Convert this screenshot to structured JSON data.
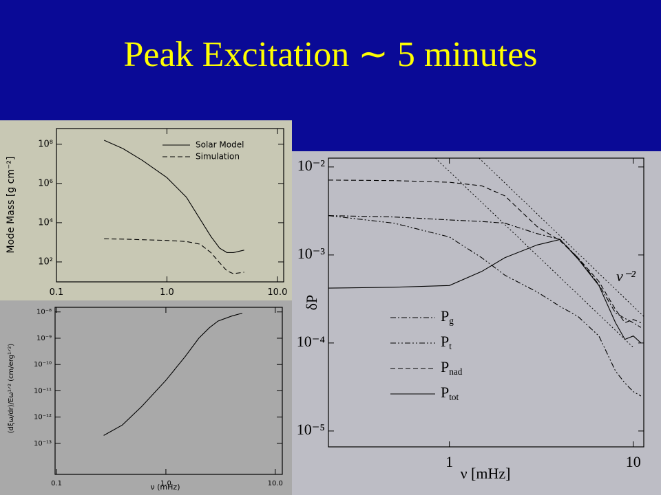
{
  "title": "Peak Excitation ∼ 5 minutes",
  "chart_data": [
    {
      "type": "line",
      "log_x": true,
      "log_y": true,
      "y_label": "Mode Mass [g cm⁻²]",
      "xlim": [
        0.1,
        11.4
      ],
      "xticks": [
        0.1,
        {
          "value": 1,
          "label": "1.0"
        },
        {
          "value": 10,
          "label": "10.0"
        }
      ],
      "ylim": [
        9.6,
        630000000
      ],
      "yticks": [
        {
          "value": 100,
          "label": "10²"
        },
        {
          "value": 10000,
          "label": "10⁴"
        },
        {
          "value": 1000000,
          "label": "10⁶"
        },
        {
          "value": 100000000,
          "label": "10⁸"
        }
      ],
      "legend": "top-right",
      "x": [
        0.27,
        0.4,
        0.6,
        1.0,
        1.5,
        2.0,
        2.5,
        3.0,
        3.5,
        4.0,
        5.0
      ],
      "series": [
        {
          "name": "Solar Model",
          "color": "#000000",
          "dash": "solid",
          "values": [
            160000000,
            60000000,
            15000000,
            2000000,
            200000,
            15000,
            2000,
            500,
            300,
            300,
            400
          ]
        },
        {
          "name": "Simulation",
          "color": "#000000",
          "dash": "dashed",
          "values": [
            1500,
            1450,
            1350,
            1250,
            1100,
            800,
            300,
            90,
            35,
            25,
            30
          ]
        }
      ]
    },
    {
      "type": "line",
      "log_x": true,
      "log_y": true,
      "x_label": "ν (mHz)",
      "y_label": "(dξω/dr)/Eω¹ᐟ² (cm/erg¹ᐟ²)",
      "xlim": [
        0.097,
        11.6
      ],
      "xticks": [
        0.1,
        {
          "value": 1,
          "label": "1.0"
        },
        {
          "value": 10,
          "label": "10.0"
        }
      ],
      "ylim": [
        6.6e-15,
        1.5e-08
      ],
      "yticks": [
        {
          "value": 1e-13,
          "label": "10⁻¹³"
        },
        {
          "value": 1e-12,
          "label": "10⁻¹²"
        },
        {
          "value": 1e-11,
          "label": "10⁻¹¹"
        },
        {
          "value": 1e-10,
          "label": "10⁻¹⁰"
        },
        {
          "value": 1e-09,
          "label": "10⁻⁹"
        },
        {
          "value": 1e-08,
          "label": "10⁻⁸"
        }
      ],
      "x": [
        0.27,
        0.4,
        0.6,
        1.0,
        1.5,
        2.0,
        2.5,
        3.0,
        4.0,
        5.0
      ],
      "series": [
        {
          "color": "#000000",
          "dash": "solid",
          "values": [
            2e-13,
            5e-13,
            2.5e-12,
            2.5e-11,
            2e-10,
            1e-09,
            2.5e-09,
            4.5e-09,
            7e-09,
            9e-09
          ]
        }
      ]
    },
    {
      "type": "line",
      "log_x": true,
      "log_y": true,
      "x_label": "ν [mHz]",
      "y_label": "δP",
      "annotation": "ν⁻²",
      "xlim": [
        0.22,
        11.4
      ],
      "xticks": [
        1,
        10
      ],
      "ylim": [
        6.6e-06,
        0.0126
      ],
      "yticks": [
        {
          "value": 1e-05,
          "label": "10⁻⁵"
        },
        {
          "value": 0.0001,
          "label": "10⁻⁴"
        },
        {
          "value": 0.001,
          "label": "10⁻³"
        },
        {
          "value": 0.01,
          "label": "10⁻²"
        }
      ],
      "legend": "bottom-left",
      "x": [
        0.22,
        0.5,
        1,
        1.5,
        2,
        3,
        4,
        5,
        6.5,
        8,
        9,
        10,
        11
      ],
      "series": [
        {
          "name": "Pg",
          "color": "#000000",
          "dash": "dash-dot",
          "values": [
            0.0028,
            0.0027,
            0.0025,
            0.0024,
            0.0023,
            0.00175,
            0.0015,
            0.00093,
            0.00046,
            0.00022,
            0.00019,
            0.00017,
            0.00015
          ]
        },
        {
          "name": "Pt",
          "color": "#000000",
          "dash": "dash-dot-dot",
          "values": [
            0.0028,
            0.0023,
            0.0016,
            0.00093,
            0.00059,
            0.00038,
            0.00026,
            0.0002,
            0.00012,
            4.8e-05,
            3.5e-05,
            2.8e-05,
            2.5e-05
          ]
        },
        {
          "name": "Pnad",
          "color": "#000000",
          "dash": "dashed",
          "values": [
            0.0071,
            0.007,
            0.0067,
            0.0061,
            0.0047,
            0.0021,
            0.00145,
            0.00093,
            0.0005,
            0.00024,
            0.00017,
            0.000185,
            0.00017
          ]
        },
        {
          "name": "Ptot",
          "color": "#000000",
          "dash": "solid",
          "values": [
            0.00042,
            0.00043,
            0.00045,
            0.00065,
            0.00093,
            0.0013,
            0.0015,
            0.0009,
            0.00045,
            0.00017,
            0.00011,
            0.00012,
            0.0001
          ]
        }
      ],
      "reference_lines": [
        {
          "dash": "dotted",
          "x": [
            0.84,
            10
          ],
          "values": [
            0.0126,
            8.9e-05
          ]
        },
        {
          "dash": "dotted",
          "x": [
            1.45,
            11.4
          ],
          "values": [
            0.0126,
            0.0002
          ]
        }
      ]
    }
  ]
}
